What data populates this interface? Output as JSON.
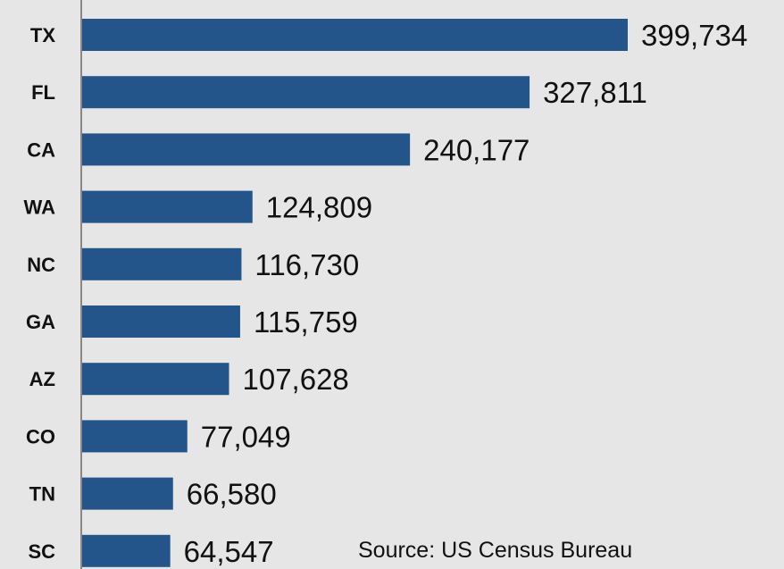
{
  "chart_data": {
    "type": "bar",
    "orientation": "horizontal",
    "categories": [
      "TX",
      "FL",
      "CA",
      "WA",
      "NC",
      "GA",
      "AZ",
      "CO",
      "TN",
      "SC"
    ],
    "values": [
      399734,
      327811,
      240177,
      124809,
      116730,
      115759,
      107628,
      77049,
      66580,
      64547
    ],
    "value_labels": [
      "399,734",
      "327,811",
      "240,177",
      "124,809",
      "116,730",
      "115,759",
      "107,628",
      "77,049",
      "66,580",
      "64,547"
    ],
    "title": "",
    "xlabel": "",
    "ylabel": "",
    "xlim": [
      0,
      399734
    ],
    "grid": false,
    "legend": "none",
    "bar_color": "#24558a",
    "source": "Source: US Census Bureau"
  }
}
